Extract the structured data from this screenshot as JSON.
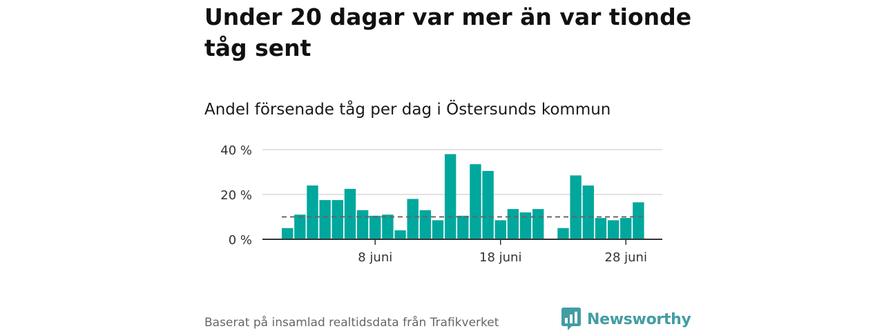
{
  "title": "Under 20 dagar var mer än var tionde tåg sent",
  "subtitle": "Andel försenade tåg per dag i Östersunds kommun",
  "footer": "Baserat på insamlad realtidsdata från Trafikverket",
  "brand": {
    "name": "Newsworthy",
    "color": "#419da3",
    "icon": "newsworthy-logo-icon"
  },
  "colors": {
    "bar": "#00a79d",
    "reference_line": "#666666",
    "grid": "#d9d9d9",
    "axis": "#333333"
  },
  "chart_data": {
    "type": "bar",
    "x": [
      1,
      2,
      3,
      4,
      5,
      6,
      7,
      8,
      9,
      10,
      11,
      12,
      13,
      14,
      15,
      16,
      17,
      18,
      19,
      20,
      21,
      22,
      23,
      24,
      25,
      26,
      27,
      28,
      29,
      30
    ],
    "values": [
      5,
      11,
      24,
      17.5,
      17.5,
      22.5,
      13,
      10.5,
      11,
      4,
      18,
      13,
      8.5,
      38,
      10.5,
      33.5,
      30.5,
      8.5,
      13.5,
      12,
      13.5,
      null,
      5,
      28.5,
      24,
      9.5,
      8.5,
      9.5,
      16.5,
      null
    ],
    "reference_line": 10,
    "ylim": [
      0,
      40
    ],
    "yticks": [
      0,
      20,
      40
    ],
    "ytick_labels": [
      "0 %",
      "20 %",
      "40 %"
    ],
    "xticks": [
      8,
      18,
      28
    ],
    "xtick_labels": [
      "8 juni",
      "18 juni",
      "28 juni"
    ],
    "xlabel": "",
    "ylabel": "",
    "grid": true
  }
}
